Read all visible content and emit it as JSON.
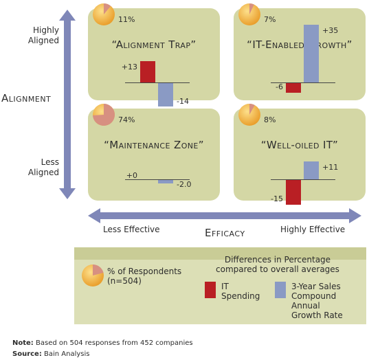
{
  "axes": {
    "y_title": "Alignment",
    "y_high": [
      "Highly",
      "Aligned"
    ],
    "y_low": [
      "Less",
      "Aligned"
    ],
    "x_title": "Efficacy",
    "x_low": "Less Effective",
    "x_high": "Highly Effective"
  },
  "colors": {
    "quadrant_fill": "#d4d7a5",
    "axis_arrow": "#7f87b8",
    "it_spending": "#b91f24",
    "growth": "#8a9ac4",
    "pie_main": "#f4b13a",
    "pie_slice": "#d79081"
  },
  "chart_data": [
    {
      "type": "bar",
      "quadrant": "top-left",
      "title": "“Alignment Trap”",
      "respondents_pct": 11,
      "respondents_label": "11%",
      "series": [
        {
          "name": "IT Spending",
          "value": 13,
          "label": "+13"
        },
        {
          "name": "3-Year Sales Compound Annual Growth Rate",
          "value": -14,
          "label": "-14"
        }
      ]
    },
    {
      "type": "bar",
      "quadrant": "top-right",
      "title": "“IT-Enabled Growth”",
      "respondents_pct": 7,
      "respondents_label": "7%",
      "series": [
        {
          "name": "IT Spending",
          "value": -6,
          "label": "-6"
        },
        {
          "name": "3-Year Sales Compound Annual Growth Rate",
          "value": 35,
          "label": "+35"
        }
      ]
    },
    {
      "type": "bar",
      "quadrant": "bottom-left",
      "title": "“Maintenance Zone”",
      "respondents_pct": 74,
      "respondents_label": "74%",
      "series": [
        {
          "name": "IT Spending",
          "value": 0,
          "label": "+0"
        },
        {
          "name": "3-Year Sales Compound Annual Growth Rate",
          "value": -2.0,
          "label": "-2.0"
        }
      ]
    },
    {
      "type": "bar",
      "quadrant": "bottom-right",
      "title": "“Well-oiled IT”",
      "respondents_pct": 8,
      "respondents_label": "8%",
      "series": [
        {
          "name": "IT Spending",
          "value": -15,
          "label": "-15"
        },
        {
          "name": "3-Year Sales Compound Annual Growth Rate",
          "value": 11,
          "label": "+11"
        }
      ]
    }
  ],
  "legend": {
    "pie_text": [
      "% of Respondents",
      "(n=504)"
    ],
    "diff_text": [
      "Differences in Percentage",
      "compared to overall averages"
    ],
    "it_label": [
      "IT",
      "Spending"
    ],
    "growth_label": [
      "3-Year Sales",
      "Compound",
      "Annual",
      "Growth Rate"
    ]
  },
  "footer": {
    "note_label": "Note:",
    "note_text": " Based on 504 responses from 452 companies",
    "source_label": "Source:",
    "source_text": " Bain Analysis"
  }
}
